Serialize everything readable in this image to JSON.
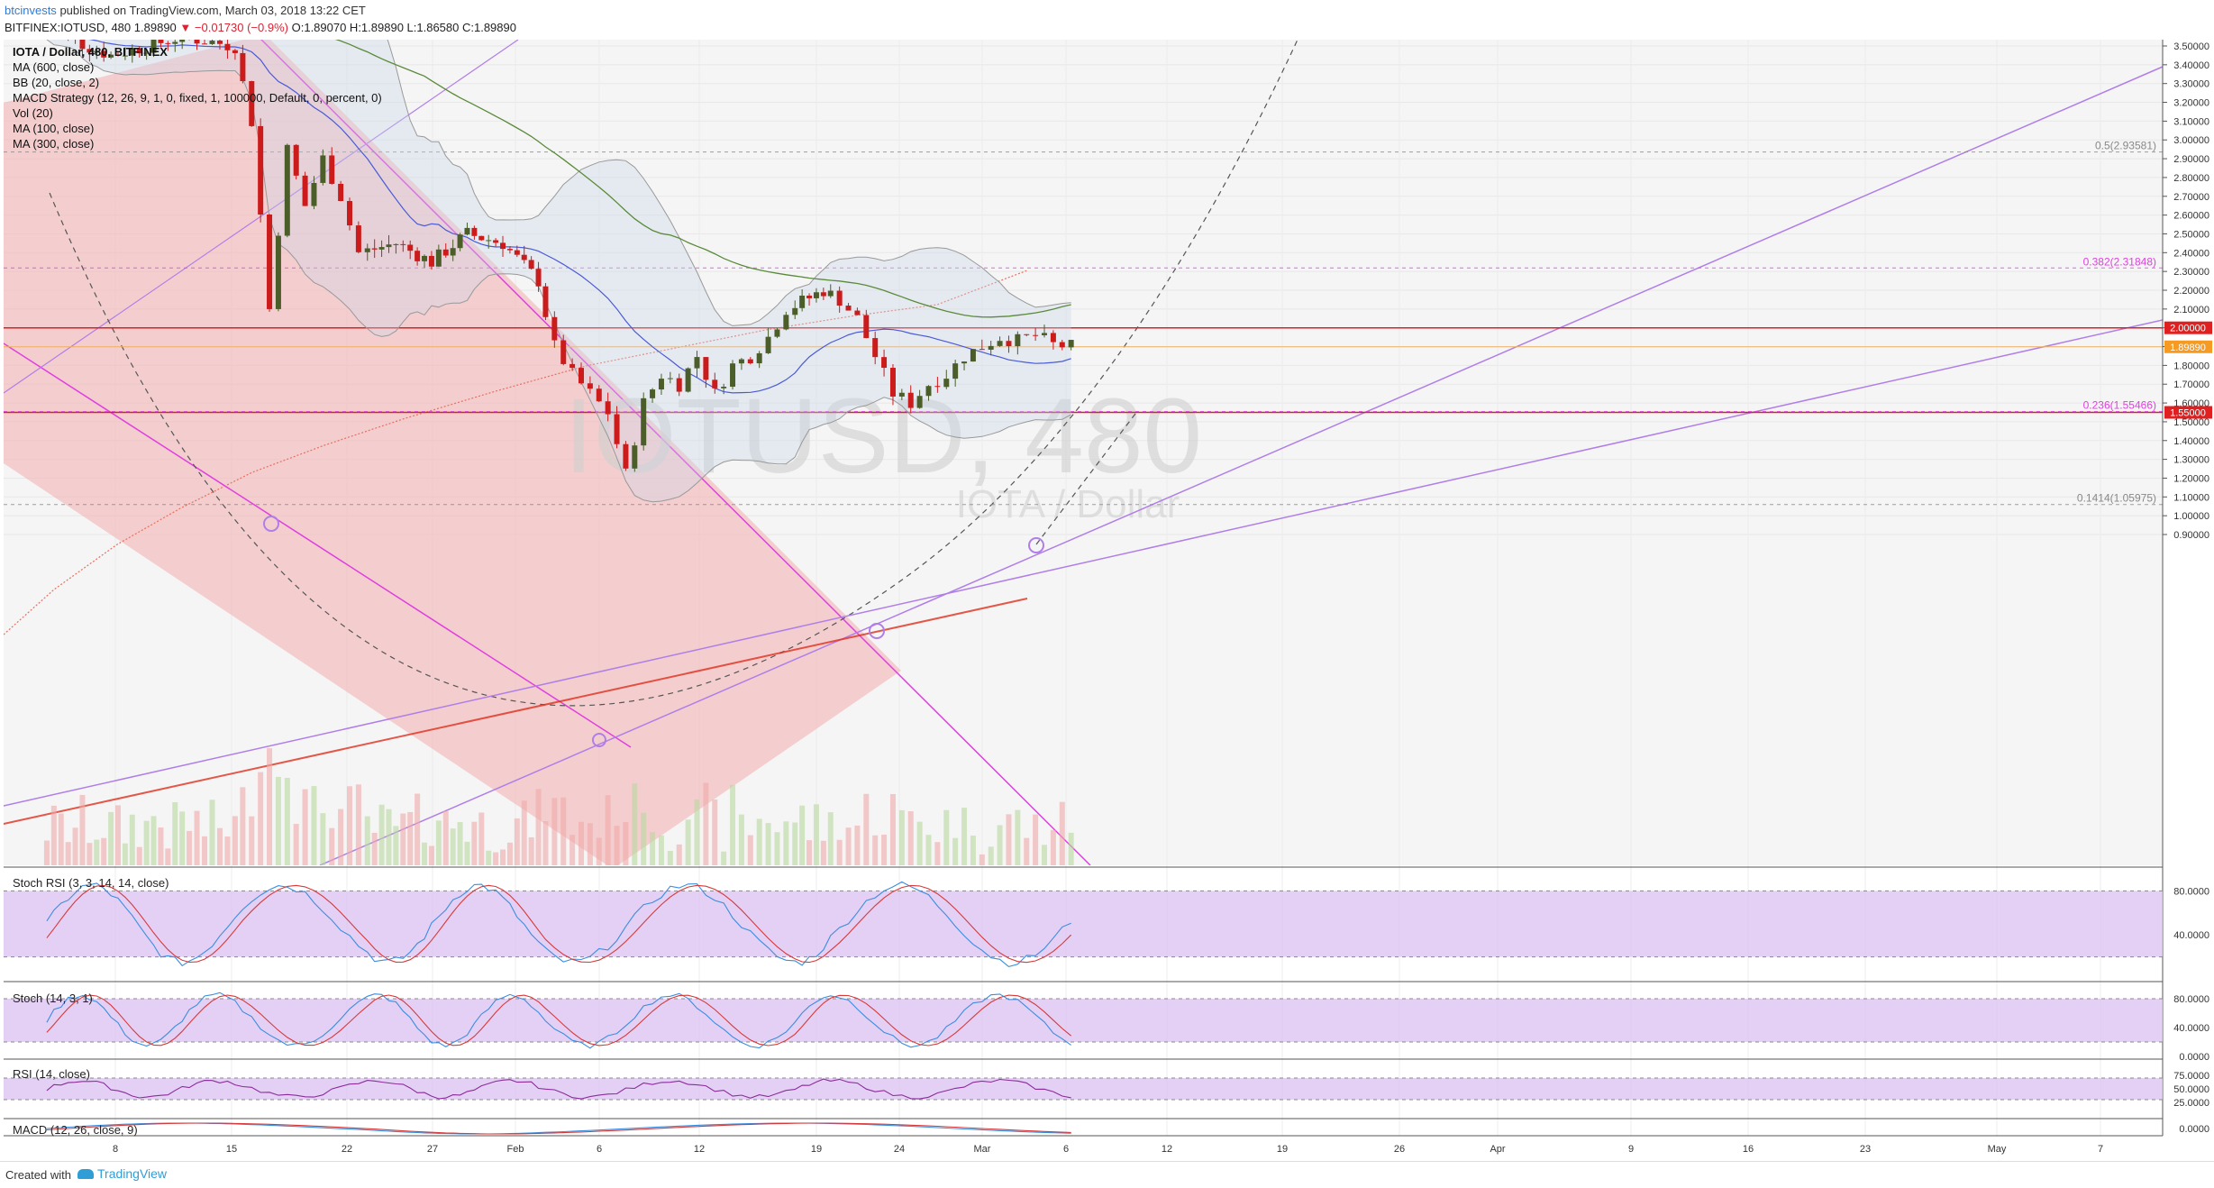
{
  "header": {
    "author": "btcinvests",
    "published": "published on TradingView.com, March 03, 2018 13:22 CET",
    "symbol_line": "BITFINEX:IOTUSD, 480",
    "last": "1.89890",
    "change_icon": "down-triangle-icon",
    "change": "−0.01730 (−0.9%)",
    "ohlc": "O:1.89070 H:1.89890 L:1.86580 C:1.89890"
  },
  "legend": [
    "IOTA / Dollar, 480, BITFINEX",
    "MA (600, close)",
    "BB (20, close, 2)",
    "MACD Strategy (12, 26, 9, 1, 0, fixed, 1, 100000, Default, 0, percent, 0)",
    "Vol (20)",
    "MA (100, close)",
    "MA (300, close)"
  ],
  "watermark": {
    "symbol": "IOTUSD, 480",
    "name": "IOTA / Dollar"
  },
  "panes": {
    "stoch_rsi": "Stoch RSI (3, 3, 14, 14, close)",
    "stoch": "Stoch (14, 3, 1)",
    "rsi": "RSI (14, close)",
    "macd": "MACD (12, 26, close, 9)"
  },
  "footer": {
    "created_with": "Created with",
    "brand": "TradingView"
  },
  "colors": {
    "up": "#4b5e2a",
    "down": "#cc1b1b",
    "channel": "#f2b8b8",
    "purple": "#b07ee8",
    "magenta": "#e040e0",
    "band": "#dfc4f2"
  },
  "chart_data": [
    {
      "type": "candlestick",
      "title": "IOTA / Dollar, 480, BITFINEX",
      "x_axis": [
        "8",
        "15",
        "22",
        "27",
        "Feb",
        "6",
        "12",
        "19",
        "24",
        "Mar",
        "6",
        "12",
        "19",
        "26",
        "Apr",
        "9",
        "16",
        "23",
        "May",
        "7"
      ],
      "y_axis_ticks": [
        "3.50000",
        "3.40000",
        "3.30000",
        "3.20000",
        "3.10000",
        "3.00000",
        "2.90000",
        "2.80000",
        "2.70000",
        "2.60000",
        "2.50000",
        "2.40000",
        "2.30000",
        "2.20000",
        "2.10000",
        "2.00000",
        "1.90000",
        "1.80000",
        "1.70000",
        "1.60000",
        "1.50000",
        "1.40000",
        "1.30000",
        "1.20000",
        "1.10000",
        "1.00000",
        "0.90000"
      ],
      "ylim": [
        0.8,
        3.52
      ],
      "last_price": "1.89890",
      "price_labels": [
        "2.00000",
        "1.89890",
        "1.55000"
      ],
      "horizontal_lines": [
        2.0,
        1.55
      ],
      "fib_levels": [
        {
          "label": "0.5(2.93581)",
          "value": 2.93581
        },
        {
          "label": "0.382(2.31848)",
          "value": 2.31848
        },
        {
          "label": "0.236(1.55466)",
          "value": 1.55466
        },
        {
          "label": "0.1414(1.05975)",
          "value": 1.05975
        }
      ],
      "close_path": [
        {
          "x": "Jan 4",
          "y": 3.6
        },
        {
          "x": "Jan 8",
          "y": 3.45
        },
        {
          "x": "Jan 12",
          "y": 3.55
        },
        {
          "x": "Jan 15",
          "y": 3.5
        },
        {
          "x": "Jan 16",
          "y": 3.1
        },
        {
          "x": "Jan 17",
          "y": 2.1
        },
        {
          "x": "Jan 18",
          "y": 2.95
        },
        {
          "x": "Jan 19",
          "y": 2.65
        },
        {
          "x": "Jan 20",
          "y": 2.9
        },
        {
          "x": "Jan 21",
          "y": 2.7
        },
        {
          "x": "Jan 22",
          "y": 2.4
        },
        {
          "x": "Jan 24",
          "y": 2.45
        },
        {
          "x": "Jan 26",
          "y": 2.35
        },
        {
          "x": "Jan 28",
          "y": 2.5
        },
        {
          "x": "Jan 30",
          "y": 2.45
        },
        {
          "x": "Feb 1",
          "y": 2.25
        },
        {
          "x": "Feb 2",
          "y": 1.9
        },
        {
          "x": "Feb 3",
          "y": 1.75
        },
        {
          "x": "Feb 4",
          "y": 1.65
        },
        {
          "x": "Feb 5",
          "y": 1.55
        },
        {
          "x": "Feb 6",
          "y": 1.22
        },
        {
          "x": "Feb 7",
          "y": 1.6
        },
        {
          "x": "Feb 8",
          "y": 1.75
        },
        {
          "x": "Feb 9",
          "y": 1.7
        },
        {
          "x": "Feb 10",
          "y": 1.85
        },
        {
          "x": "Feb 11",
          "y": 1.65
        },
        {
          "x": "Feb 12",
          "y": 1.8
        },
        {
          "x": "Feb 13",
          "y": 1.85
        },
        {
          "x": "Feb 14",
          "y": 1.95
        },
        {
          "x": "Feb 15",
          "y": 2.1
        },
        {
          "x": "Feb 17",
          "y": 2.2
        },
        {
          "x": "Feb 18",
          "y": 2.15
        },
        {
          "x": "Feb 19",
          "y": 2.05
        },
        {
          "x": "Feb 20",
          "y": 1.85
        },
        {
          "x": "Feb 21",
          "y": 1.65
        },
        {
          "x": "Feb 22",
          "y": 1.6
        },
        {
          "x": "Feb 23",
          "y": 1.7
        },
        {
          "x": "Feb 24",
          "y": 1.75
        },
        {
          "x": "Feb 25",
          "y": 1.85
        },
        {
          "x": "Feb 26",
          "y": 1.9
        },
        {
          "x": "Feb 27",
          "y": 1.95
        },
        {
          "x": "Feb 28",
          "y": 1.93
        },
        {
          "x": "Mar 1",
          "y": 1.96
        },
        {
          "x": "Mar 2",
          "y": 1.91
        },
        {
          "x": "Mar 3",
          "y": 1.9
        }
      ],
      "indicator_panes": [
        {
          "name": "Stoch RSI (3, 3, 14, 14, close)",
          "ticks": [
            "80.0000",
            "40.0000"
          ],
          "band": [
            20,
            80
          ]
        },
        {
          "name": "Stoch (14, 3, 1)",
          "ticks": [
            "80.0000",
            "40.0000",
            "0.0000"
          ],
          "band": [
            20,
            80
          ]
        },
        {
          "name": "RSI (14, close)",
          "ticks": [
            "75.0000",
            "50.0000",
            "25.0000"
          ],
          "band": [
            30,
            70
          ]
        },
        {
          "name": "MACD (12, 26, close, 9)",
          "ticks": [
            "0.0000"
          ]
        }
      ]
    }
  ]
}
